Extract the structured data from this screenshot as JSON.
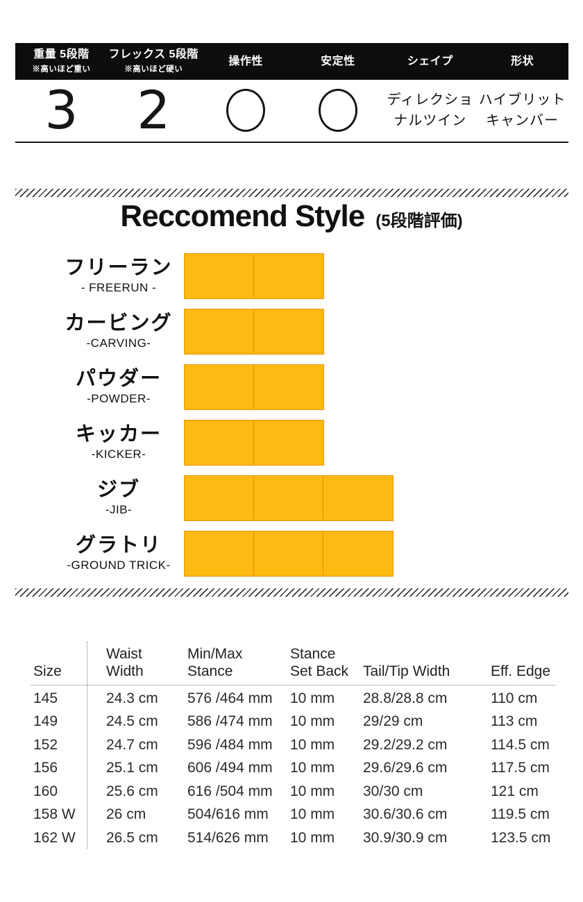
{
  "spec_bar": {
    "columns": [
      {
        "label": "重量 5段階",
        "note": "※高いほど重い",
        "type": "number",
        "value": "3"
      },
      {
        "label": "フレックス 5段階",
        "note": "※高いほど硬い",
        "type": "number",
        "value": "2"
      },
      {
        "label": "操作性",
        "type": "circle",
        "value": "circle-mark"
      },
      {
        "label": "安定性",
        "type": "circle",
        "value": "circle-mark"
      },
      {
        "label": "シェイプ",
        "type": "text",
        "value": "ディレクショ\nナルツイン"
      },
      {
        "label": "形状",
        "type": "text",
        "value": "ハイブリット\nキャンバー"
      }
    ]
  },
  "recommend": {
    "title": "Reccomend Style",
    "subtitle": "(5段階評価)",
    "scale_max": 5,
    "bar_color": "#FDBA12",
    "bar_border_color": "#EB9209",
    "items": [
      {
        "jp": "フリーラン",
        "en": "- FREERUN -",
        "rating": 2
      },
      {
        "jp": "カービング",
        "en": "-CARVING-",
        "rating": 2
      },
      {
        "jp": "パウダー",
        "en": "-POWDER-",
        "rating": 2
      },
      {
        "jp": "キッカー",
        "en": "-KICKER-",
        "rating": 2
      },
      {
        "jp": "ジブ",
        "en": "-JIB-",
        "rating": 3
      },
      {
        "jp": "グラトリ",
        "en": "-GROUND TRICK-",
        "rating": 3
      }
    ]
  },
  "chart_data": {
    "type": "bar",
    "categories": [
      "フリーラン (FREERUN)",
      "カービング (CARVING)",
      "パウダー (POWDER)",
      "キッカー (KICKER)",
      "ジブ (JIB)",
      "グラトリ (GROUND TRICK)"
    ],
    "values": [
      2,
      2,
      2,
      2,
      3,
      3
    ],
    "title": "Reccomend Style (5段階評価)",
    "xlabel": "",
    "ylabel": "",
    "xlim": [
      0,
      5
    ],
    "legend": false,
    "grid": false
  },
  "size_table": {
    "headers": [
      "Size",
      "Waist\nWidth",
      "Min/Max\nStance",
      "Stance\nSet Back",
      "Tail/Tip Width",
      "Eff. Edge"
    ],
    "rows": [
      [
        "145",
        "24.3 cm",
        "576 /464 mm",
        "10 mm",
        "28.8/28.8 cm",
        "110 cm"
      ],
      [
        "149",
        "24.5 cm",
        "586 /474 mm",
        "10 mm",
        "29/29 cm",
        "113 cm"
      ],
      [
        "152",
        "24.7 cm",
        "596 /484 mm",
        "10 mm",
        "29.2/29.2 cm",
        "114.5 cm"
      ],
      [
        "156",
        "25.1 cm",
        "606 /494 mm",
        "10 mm",
        "29.6/29.6 cm",
        "117.5 cm"
      ],
      [
        "160",
        "25.6 cm",
        "616 /504 mm",
        "10 mm",
        "30/30 cm",
        "121 cm"
      ],
      [
        "158 W",
        "26 cm",
        "504/616 mm",
        "10 mm",
        "30.6/30.6 cm",
        "119.5 cm"
      ],
      [
        "162 W",
        "26.5 cm",
        "514/626 mm",
        "10 mm",
        "30.9/30.9 cm",
        "123.5 cm"
      ]
    ]
  }
}
